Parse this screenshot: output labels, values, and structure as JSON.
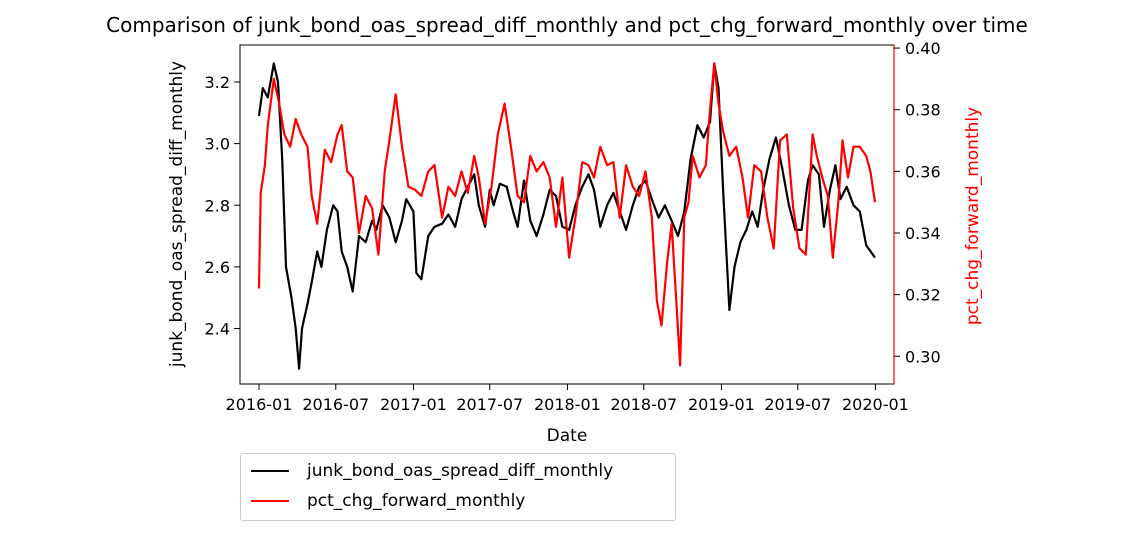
{
  "chart_data": {
    "type": "line",
    "title": "Comparison of junk_bond_oas_spread_diff_monthly and pct_chg_forward_monthly over time",
    "xlabel": "Date",
    "ylabel_left": "junk_bond_oas_spread_diff_monthly",
    "ylabel_right": "pct_chg_forward_monthly",
    "x_ticks": [
      "2016-01",
      "2016-07",
      "2017-01",
      "2017-07",
      "2018-01",
      "2018-07",
      "2019-01",
      "2019-07",
      "2020-01"
    ],
    "y_left_ticks": [
      "2.4",
      "2.6",
      "2.8",
      "3.0",
      "3.2"
    ],
    "y_right_ticks": [
      "0.30",
      "0.32",
      "0.34",
      "0.36",
      "0.38",
      "0.40"
    ],
    "xlim": [
      "2015-11-17",
      "2020-02-14"
    ],
    "ylim_left": [
      2.22,
      3.32
    ],
    "ylim_right": [
      0.291,
      0.401
    ],
    "legend_placement": "below plot",
    "grid": false,
    "series": [
      {
        "name": "junk_bond_oas_spread_diff_monthly",
        "axis": "left",
        "color": "#000000",
        "points": [
          [
            "2016-01-01",
            3.09
          ],
          [
            "2016-01-10",
            3.18
          ],
          [
            "2016-01-22",
            3.15
          ],
          [
            "2016-02-05",
            3.26
          ],
          [
            "2016-02-15",
            3.2
          ],
          [
            "2016-02-25",
            2.95
          ],
          [
            "2016-03-05",
            2.6
          ],
          [
            "2016-03-18",
            2.5
          ],
          [
            "2016-03-28",
            2.4
          ],
          [
            "2016-04-05",
            2.27
          ],
          [
            "2016-04-12",
            2.4
          ],
          [
            "2016-04-25",
            2.48
          ],
          [
            "2016-05-05",
            2.55
          ],
          [
            "2016-05-18",
            2.65
          ],
          [
            "2016-05-28",
            2.6
          ],
          [
            "2016-06-10",
            2.72
          ],
          [
            "2016-06-25",
            2.8
          ],
          [
            "2016-07-05",
            2.78
          ],
          [
            "2016-07-15",
            2.65
          ],
          [
            "2016-07-28",
            2.6
          ],
          [
            "2016-08-10",
            2.52
          ],
          [
            "2016-08-25",
            2.7
          ],
          [
            "2016-09-10",
            2.68
          ],
          [
            "2016-09-25",
            2.75
          ],
          [
            "2016-10-05",
            2.72
          ],
          [
            "2016-10-20",
            2.8
          ],
          [
            "2016-11-05",
            2.76
          ],
          [
            "2016-11-20",
            2.68
          ],
          [
            "2016-12-05",
            2.75
          ],
          [
            "2016-12-15",
            2.82
          ],
          [
            "2017-01-01",
            2.78
          ],
          [
            "2017-01-08",
            2.58
          ],
          [
            "2017-01-20",
            2.56
          ],
          [
            "2017-02-05",
            2.7
          ],
          [
            "2017-02-20",
            2.73
          ],
          [
            "2017-03-10",
            2.74
          ],
          [
            "2017-03-25",
            2.77
          ],
          [
            "2017-04-10",
            2.73
          ],
          [
            "2017-04-25",
            2.82
          ],
          [
            "2017-05-10",
            2.86
          ],
          [
            "2017-05-25",
            2.9
          ],
          [
            "2017-06-05",
            2.8
          ],
          [
            "2017-06-20",
            2.73
          ],
          [
            "2017-07-01",
            2.85
          ],
          [
            "2017-07-10",
            2.8
          ],
          [
            "2017-07-25",
            2.87
          ],
          [
            "2017-08-10",
            2.86
          ],
          [
            "2017-08-25",
            2.78
          ],
          [
            "2017-09-05",
            2.73
          ],
          [
            "2017-09-20",
            2.88
          ],
          [
            "2017-10-05",
            2.75
          ],
          [
            "2017-10-20",
            2.7
          ],
          [
            "2017-11-05",
            2.77
          ],
          [
            "2017-11-20",
            2.85
          ],
          [
            "2017-12-05",
            2.83
          ],
          [
            "2017-12-20",
            2.73
          ],
          [
            "2018-01-05",
            2.72
          ],
          [
            "2018-01-20",
            2.8
          ],
          [
            "2018-02-05",
            2.86
          ],
          [
            "2018-02-20",
            2.9
          ],
          [
            "2018-03-05",
            2.85
          ],
          [
            "2018-03-20",
            2.73
          ],
          [
            "2018-04-05",
            2.8
          ],
          [
            "2018-04-20",
            2.84
          ],
          [
            "2018-05-05",
            2.78
          ],
          [
            "2018-05-20",
            2.72
          ],
          [
            "2018-06-05",
            2.8
          ],
          [
            "2018-06-20",
            2.86
          ],
          [
            "2018-07-05",
            2.88
          ],
          [
            "2018-07-20",
            2.82
          ],
          [
            "2018-08-05",
            2.76
          ],
          [
            "2018-08-20",
            2.8
          ],
          [
            "2018-09-05",
            2.75
          ],
          [
            "2018-09-20",
            2.7
          ],
          [
            "2018-10-05",
            2.78
          ],
          [
            "2018-10-20",
            2.95
          ],
          [
            "2018-11-05",
            3.06
          ],
          [
            "2018-11-20",
            3.02
          ],
          [
            "2018-12-05",
            3.07
          ],
          [
            "2018-12-15",
            3.26
          ],
          [
            "2018-12-25",
            3.18
          ],
          [
            "2019-01-05",
            2.85
          ],
          [
            "2019-01-20",
            2.46
          ],
          [
            "2019-02-01",
            2.6
          ],
          [
            "2019-02-15",
            2.68
          ],
          [
            "2019-03-01",
            2.72
          ],
          [
            "2019-03-15",
            2.78
          ],
          [
            "2019-03-28",
            2.73
          ],
          [
            "2019-04-10",
            2.85
          ],
          [
            "2019-04-25",
            2.95
          ],
          [
            "2019-05-10",
            3.02
          ],
          [
            "2019-05-25",
            2.92
          ],
          [
            "2019-06-10",
            2.8
          ],
          [
            "2019-06-25",
            2.72
          ],
          [
            "2019-07-10",
            2.72
          ],
          [
            "2019-07-25",
            2.88
          ],
          [
            "2019-08-05",
            2.93
          ],
          [
            "2019-08-20",
            2.9
          ],
          [
            "2019-09-01",
            2.73
          ],
          [
            "2019-09-15",
            2.85
          ],
          [
            "2019-09-28",
            2.93
          ],
          [
            "2019-10-10",
            2.82
          ],
          [
            "2019-10-25",
            2.86
          ],
          [
            "2019-11-10",
            2.8
          ],
          [
            "2019-11-25",
            2.78
          ],
          [
            "2019-12-10",
            2.67
          ],
          [
            "2019-12-31",
            2.63
          ]
        ]
      },
      {
        "name": "pct_chg_forward_monthly",
        "axis": "right",
        "color": "#ff0000",
        "points": [
          [
            "2016-01-01",
            0.322
          ],
          [
            "2016-01-05",
            0.353
          ],
          [
            "2016-01-15",
            0.362
          ],
          [
            "2016-01-22",
            0.375
          ],
          [
            "2016-02-05",
            0.39
          ],
          [
            "2016-02-18",
            0.382
          ],
          [
            "2016-03-01",
            0.372
          ],
          [
            "2016-03-15",
            0.368
          ],
          [
            "2016-03-28",
            0.377
          ],
          [
            "2016-04-10",
            0.372
          ],
          [
            "2016-04-25",
            0.368
          ],
          [
            "2016-05-05",
            0.352
          ],
          [
            "2016-05-18",
            0.343
          ],
          [
            "2016-06-05",
            0.367
          ],
          [
            "2016-06-20",
            0.363
          ],
          [
            "2016-07-05",
            0.372
          ],
          [
            "2016-07-15",
            0.375
          ],
          [
            "2016-07-28",
            0.36
          ],
          [
            "2016-08-10",
            0.358
          ],
          [
            "2016-08-25",
            0.34
          ],
          [
            "2016-09-10",
            0.352
          ],
          [
            "2016-09-25",
            0.348
          ],
          [
            "2016-10-10",
            0.333
          ],
          [
            "2016-10-25",
            0.36
          ],
          [
            "2016-11-05",
            0.37
          ],
          [
            "2016-11-20",
            0.385
          ],
          [
            "2016-12-05",
            0.368
          ],
          [
            "2016-12-20",
            0.355
          ],
          [
            "2017-01-05",
            0.354
          ],
          [
            "2017-01-20",
            0.352
          ],
          [
            "2017-02-05",
            0.36
          ],
          [
            "2017-02-20",
            0.362
          ],
          [
            "2017-03-10",
            0.345
          ],
          [
            "2017-03-25",
            0.355
          ],
          [
            "2017-04-10",
            0.352
          ],
          [
            "2017-04-25",
            0.36
          ],
          [
            "2017-05-10",
            0.353
          ],
          [
            "2017-05-25",
            0.365
          ],
          [
            "2017-06-05",
            0.358
          ],
          [
            "2017-06-20",
            0.343
          ],
          [
            "2017-07-05",
            0.355
          ],
          [
            "2017-07-20",
            0.372
          ],
          [
            "2017-08-05",
            0.382
          ],
          [
            "2017-08-20",
            0.368
          ],
          [
            "2017-09-05",
            0.352
          ],
          [
            "2017-09-20",
            0.35
          ],
          [
            "2017-10-05",
            0.365
          ],
          [
            "2017-10-20",
            0.36
          ],
          [
            "2017-11-05",
            0.363
          ],
          [
            "2017-11-20",
            0.358
          ],
          [
            "2017-12-05",
            0.342
          ],
          [
            "2017-12-20",
            0.358
          ],
          [
            "2018-01-05",
            0.332
          ],
          [
            "2018-01-20",
            0.345
          ],
          [
            "2018-02-05",
            0.363
          ],
          [
            "2018-02-20",
            0.362
          ],
          [
            "2018-03-05",
            0.358
          ],
          [
            "2018-03-20",
            0.368
          ],
          [
            "2018-04-05",
            0.362
          ],
          [
            "2018-04-20",
            0.363
          ],
          [
            "2018-05-05",
            0.345
          ],
          [
            "2018-05-20",
            0.362
          ],
          [
            "2018-06-05",
            0.355
          ],
          [
            "2018-06-20",
            0.352
          ],
          [
            "2018-07-05",
            0.36
          ],
          [
            "2018-07-20",
            0.345
          ],
          [
            "2018-08-01",
            0.318
          ],
          [
            "2018-08-12",
            0.31
          ],
          [
            "2018-08-25",
            0.33
          ],
          [
            "2018-09-05",
            0.343
          ],
          [
            "2018-09-15",
            0.32
          ],
          [
            "2018-09-25",
            0.297
          ],
          [
            "2018-10-05",
            0.345
          ],
          [
            "2018-10-15",
            0.35
          ],
          [
            "2018-10-25",
            0.365
          ],
          [
            "2018-11-10",
            0.358
          ],
          [
            "2018-11-25",
            0.362
          ],
          [
            "2018-12-05",
            0.38
          ],
          [
            "2018-12-15",
            0.395
          ],
          [
            "2018-12-25",
            0.382
          ],
          [
            "2019-01-05",
            0.373
          ],
          [
            "2019-01-20",
            0.365
          ],
          [
            "2019-02-05",
            0.368
          ],
          [
            "2019-02-20",
            0.358
          ],
          [
            "2019-03-05",
            0.345
          ],
          [
            "2019-03-20",
            0.362
          ],
          [
            "2019-04-05",
            0.36
          ],
          [
            "2019-04-20",
            0.345
          ],
          [
            "2019-05-05",
            0.335
          ],
          [
            "2019-05-20",
            0.37
          ],
          [
            "2019-06-05",
            0.372
          ],
          [
            "2019-06-20",
            0.348
          ],
          [
            "2019-07-05",
            0.335
          ],
          [
            "2019-07-20",
            0.333
          ],
          [
            "2019-08-05",
            0.372
          ],
          [
            "2019-08-15",
            0.365
          ],
          [
            "2019-08-28",
            0.358
          ],
          [
            "2019-09-10",
            0.352
          ],
          [
            "2019-09-22",
            0.332
          ],
          [
            "2019-10-05",
            0.35
          ],
          [
            "2019-10-15",
            0.37
          ],
          [
            "2019-10-28",
            0.358
          ],
          [
            "2019-11-10",
            0.368
          ],
          [
            "2019-11-25",
            0.368
          ],
          [
            "2019-12-10",
            0.365
          ],
          [
            "2019-12-20",
            0.36
          ],
          [
            "2019-12-31",
            0.35
          ]
        ]
      }
    ]
  }
}
